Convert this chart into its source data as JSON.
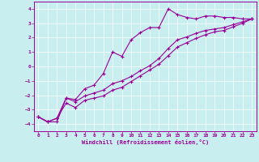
{
  "xlabel": "Windchill (Refroidissement éolien,°C)",
  "bg_color": "#c8eef0",
  "line_color": "#990099",
  "grid_color": "#ffffff",
  "xlim": [
    -0.5,
    23.5
  ],
  "ylim": [
    -4.5,
    4.5
  ],
  "xticks": [
    0,
    1,
    2,
    3,
    4,
    5,
    6,
    7,
    8,
    9,
    10,
    11,
    12,
    13,
    14,
    15,
    16,
    17,
    18,
    19,
    20,
    21,
    22,
    23
  ],
  "yticks": [
    -4,
    -3,
    -2,
    -1,
    0,
    1,
    2,
    3,
    4
  ],
  "line1_x": [
    0,
    1,
    2,
    3,
    4,
    5,
    6,
    7,
    8,
    9,
    10,
    11,
    12,
    13,
    14,
    15,
    16,
    17,
    18,
    19,
    20,
    21,
    22,
    23
  ],
  "line1_y": [
    -3.5,
    -3.85,
    -3.85,
    -2.2,
    -2.3,
    -1.55,
    -1.3,
    -0.5,
    1.0,
    0.7,
    1.85,
    2.35,
    2.7,
    2.7,
    4.0,
    3.6,
    3.4,
    3.3,
    3.5,
    3.5,
    3.4,
    3.4,
    3.3,
    3.3
  ],
  "line2_x": [
    0,
    1,
    2,
    3,
    4,
    5,
    6,
    7,
    8,
    9,
    10,
    11,
    12,
    13,
    14,
    15,
    16,
    17,
    18,
    19,
    20,
    21,
    22,
    23
  ],
  "line2_y": [
    -3.5,
    -3.85,
    -3.6,
    -2.2,
    -2.45,
    -2.05,
    -1.85,
    -1.65,
    -1.2,
    -1.0,
    -0.7,
    -0.3,
    0.05,
    0.55,
    1.25,
    1.85,
    2.05,
    2.3,
    2.5,
    2.6,
    2.7,
    2.9,
    3.1,
    3.3
  ],
  "line3_x": [
    0,
    1,
    2,
    3,
    4,
    5,
    6,
    7,
    8,
    9,
    10,
    11,
    12,
    13,
    14,
    15,
    16,
    17,
    18,
    19,
    20,
    21,
    22,
    23
  ],
  "line3_y": [
    -3.5,
    -3.85,
    -3.6,
    -2.55,
    -2.85,
    -2.35,
    -2.2,
    -2.05,
    -1.65,
    -1.45,
    -1.05,
    -0.65,
    -0.25,
    0.15,
    0.75,
    1.35,
    1.65,
    1.95,
    2.2,
    2.4,
    2.5,
    2.75,
    3.0,
    3.3
  ]
}
